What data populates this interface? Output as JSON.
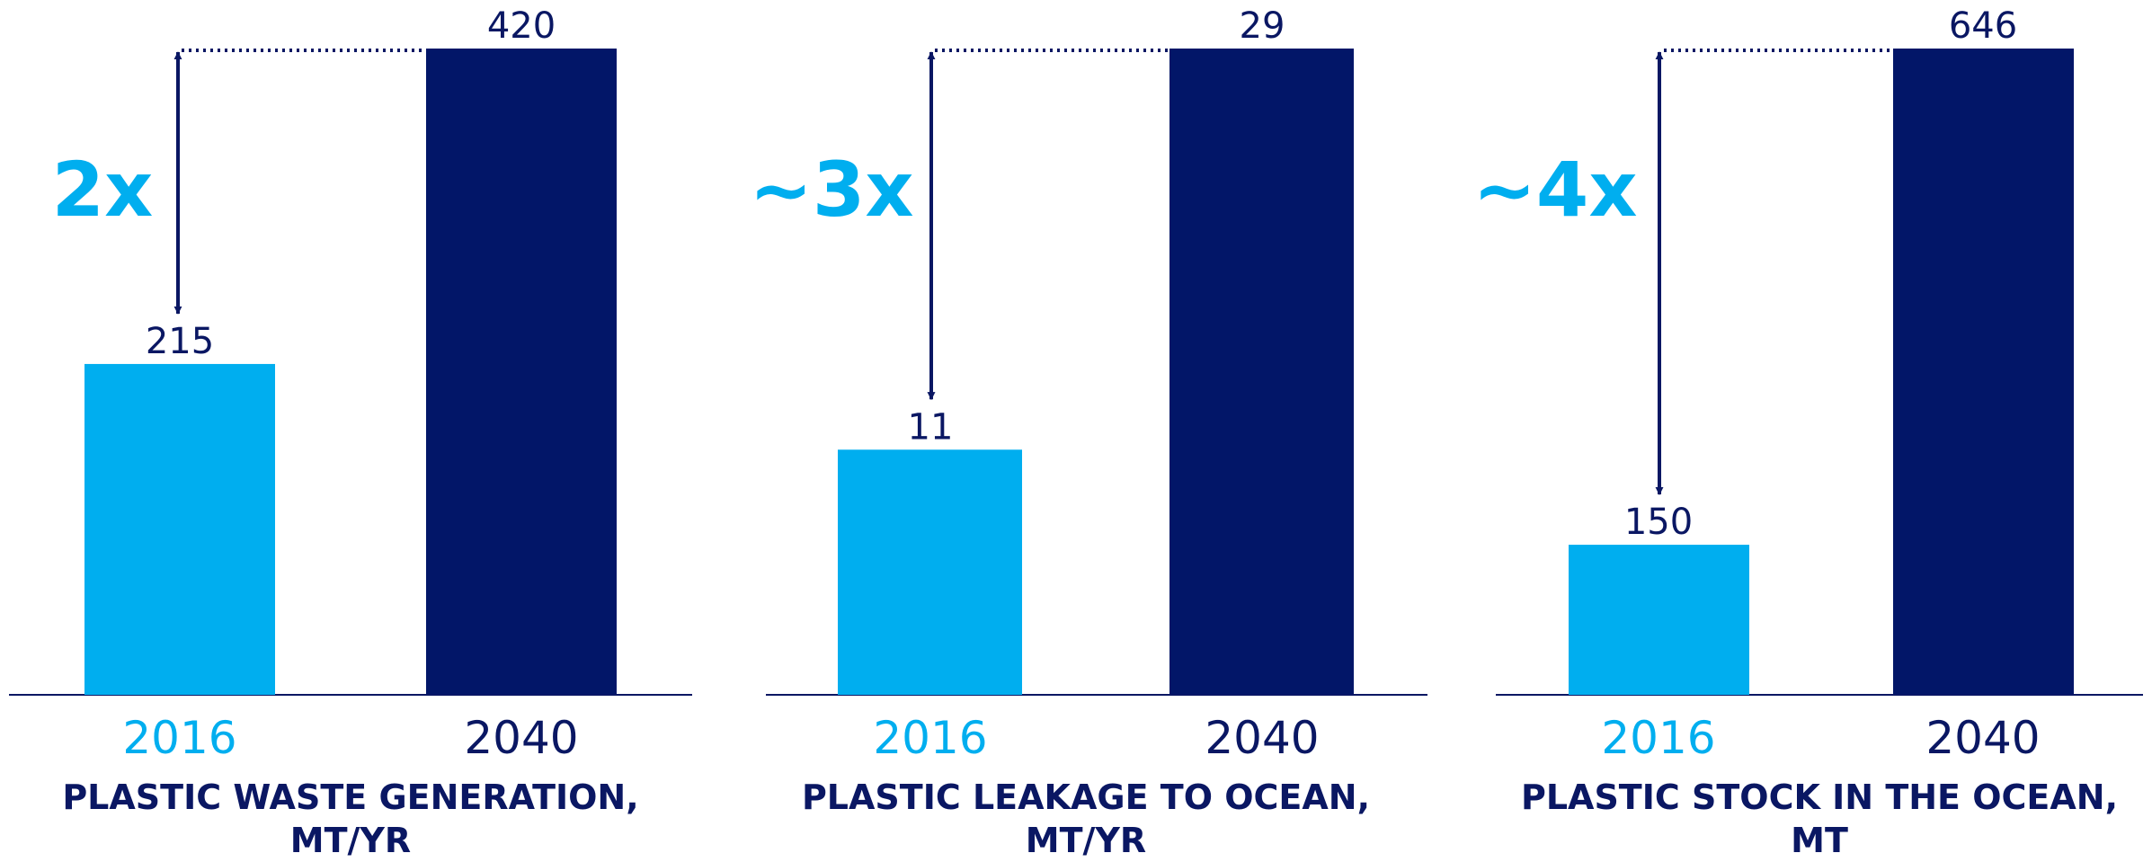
{
  "colors": {
    "year_2016": "#00aeef",
    "year_2040": "#021668",
    "text_dark": "#0a1763"
  },
  "chart_data": [
    {
      "type": "bar",
      "title_lines": [
        "PLASTIC WASTE GENERATION,",
        "MT/YR"
      ],
      "categories": [
        "2016",
        "2040"
      ],
      "values": [
        215,
        420
      ],
      "annotation": "2x",
      "ylim": [
        0,
        420
      ],
      "grid": false
    },
    {
      "type": "bar",
      "title_lines": [
        "PLASTIC LEAKAGE TO OCEAN,",
        "MT/YR"
      ],
      "categories": [
        "2016",
        "2040"
      ],
      "values": [
        11,
        29
      ],
      "annotation": "~3x",
      "ylim": [
        0,
        29
      ],
      "grid": false
    },
    {
      "type": "bar",
      "title_lines": [
        "PLASTIC STOCK IN THE OCEAN,",
        "MT"
      ],
      "categories": [
        "2016",
        "2040"
      ],
      "values": [
        150,
        646
      ],
      "annotation": "~4x",
      "ylim": [
        0,
        646
      ],
      "grid": false
    }
  ]
}
